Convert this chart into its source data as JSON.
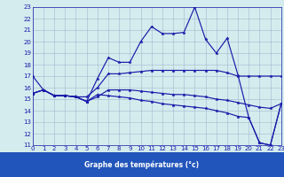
{
  "xlabel": "Graphe des températures (°c)",
  "xlim": [
    0,
    23
  ],
  "ylim": [
    11,
    23
  ],
  "yticks": [
    11,
    12,
    13,
    14,
    15,
    16,
    17,
    18,
    19,
    20,
    21,
    22,
    23
  ],
  "xticks": [
    0,
    1,
    2,
    3,
    4,
    5,
    6,
    7,
    8,
    9,
    10,
    11,
    12,
    13,
    14,
    15,
    16,
    17,
    18,
    19,
    20,
    21,
    22,
    23
  ],
  "bg_color": "#d4ecee",
  "line_color": "#1a1aaa",
  "grid_color": "#a0b8cc",
  "label_bg": "#2255bb",
  "line1_y": [
    17.0,
    15.8,
    15.3,
    15.3,
    15.2,
    14.8,
    16.8,
    18.6,
    18.2,
    18.2,
    20.0,
    21.3,
    20.7,
    20.7,
    20.8,
    23.0,
    20.2,
    19.0,
    20.3,
    17.1,
    13.4,
    11.2,
    11.0,
    14.6
  ],
  "line2_y": [
    15.5,
    15.8,
    15.3,
    15.3,
    15.2,
    15.2,
    16.0,
    17.2,
    17.2,
    17.3,
    17.4,
    17.5,
    17.5,
    17.5,
    17.5,
    17.5,
    17.5,
    17.5,
    17.3,
    17.0,
    17.0,
    17.0,
    17.0,
    17.0
  ],
  "line3_y": [
    15.5,
    15.8,
    15.3,
    15.3,
    15.2,
    14.8,
    15.2,
    15.8,
    15.8,
    15.8,
    15.7,
    15.6,
    15.5,
    15.4,
    15.4,
    15.3,
    15.2,
    15.0,
    14.9,
    14.7,
    14.5,
    14.3,
    14.2,
    14.6
  ],
  "line4_y": [
    15.5,
    15.8,
    15.3,
    15.3,
    15.2,
    14.8,
    15.4,
    15.3,
    15.2,
    15.1,
    14.9,
    14.8,
    14.6,
    14.5,
    14.4,
    14.3,
    14.2,
    14.0,
    13.8,
    13.5,
    13.4,
    11.2,
    11.0,
    14.6
  ],
  "tick_fontsize": 5,
  "xlabel_fontsize": 5.5
}
